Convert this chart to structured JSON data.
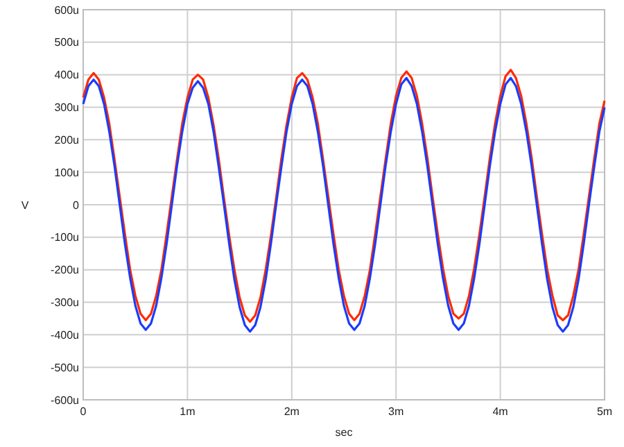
{
  "chart_data": {
    "type": "line",
    "xlabel": "sec",
    "ylabel": "V",
    "grid": true,
    "line_style": "solid",
    "marker": "none",
    "xlim": [
      0,
      5
    ],
    "ylim": [
      -600,
      600
    ],
    "xticks": [
      0,
      {
        "value": 1,
        "label": "1m"
      },
      {
        "value": 2,
        "label": "2m"
      },
      {
        "value": 3,
        "label": "3m"
      },
      {
        "value": 4,
        "label": "4m"
      },
      {
        "value": 5,
        "label": "5m"
      }
    ],
    "yticks": [
      {
        "value": -600,
        "label": "-600u"
      },
      {
        "value": -500,
        "label": "-500u"
      },
      {
        "value": -400,
        "label": "-400u"
      },
      {
        "value": -300,
        "label": "-300u"
      },
      {
        "value": -200,
        "label": "-200u"
      },
      {
        "value": -100,
        "label": "-100u"
      },
      0,
      {
        "value": 100,
        "label": "100u"
      },
      {
        "value": 200,
        "label": "200u"
      },
      {
        "value": 300,
        "label": "300u"
      },
      {
        "value": 400,
        "label": "400u"
      },
      {
        "value": 500,
        "label": "500u"
      },
      {
        "value": 600,
        "label": "600u"
      }
    ],
    "x": [
      0,
      0.05,
      0.1,
      0.15,
      0.2,
      0.25,
      0.3,
      0.35,
      0.4,
      0.45,
      0.5,
      0.55,
      0.6,
      0.65,
      0.7,
      0.75,
      0.8,
      0.85,
      0.9,
      0.95,
      1,
      1.05,
      1.1,
      1.15,
      1.2,
      1.25,
      1.3,
      1.35,
      1.4,
      1.45,
      1.5,
      1.55,
      1.6,
      1.65,
      1.7,
      1.75,
      1.8,
      1.85,
      1.9,
      1.95,
      2,
      2.05,
      2.1,
      2.15,
      2.2,
      2.25,
      2.3,
      2.35,
      2.4,
      2.45,
      2.5,
      2.55,
      2.6,
      2.65,
      2.7,
      2.75,
      2.8,
      2.85,
      2.9,
      2.95,
      3,
      3.05,
      3.1,
      3.15,
      3.2,
      3.25,
      3.3,
      3.35,
      3.4,
      3.45,
      3.5,
      3.55,
      3.6,
      3.65,
      3.7,
      3.75,
      3.8,
      3.85,
      3.9,
      3.95,
      4,
      4.05,
      4.1,
      4.15,
      4.2,
      4.25,
      4.3,
      4.35,
      4.4,
      4.45,
      4.5,
      4.55,
      4.6,
      4.65,
      4.7,
      4.75,
      4.8,
      4.85,
      4.9,
      4.95,
      5
    ],
    "series": [
      {
        "color": "#ff2a00",
        "values": [
          330,
          385,
          405,
          385,
          330,
          250,
          140,
          25,
          -90,
          -200,
          -280,
          -335,
          -355,
          -335,
          -280,
          -200,
          -90,
          25,
          140,
          250,
          330,
          385,
          400,
          385,
          330,
          245,
          140,
          20,
          -95,
          -200,
          -285,
          -340,
          -360,
          -340,
          -285,
          -200,
          -95,
          20,
          140,
          245,
          330,
          390,
          405,
          385,
          330,
          250,
          140,
          25,
          -90,
          -200,
          -280,
          -335,
          -355,
          -335,
          -280,
          -200,
          -90,
          25,
          140,
          250,
          335,
          390,
          410,
          390,
          335,
          250,
          145,
          25,
          -90,
          -195,
          -280,
          -335,
          -350,
          -335,
          -280,
          -195,
          -90,
          25,
          145,
          250,
          335,
          395,
          415,
          390,
          335,
          250,
          145,
          25,
          -90,
          -200,
          -280,
          -340,
          -355,
          -340,
          -280,
          -200,
          -90,
          25,
          140,
          250,
          320
        ]
      },
      {
        "color": "#1a3cff",
        "values": [
          310,
          365,
          385,
          365,
          310,
          225,
          120,
          0,
          -120,
          -225,
          -310,
          -365,
          -385,
          -365,
          -310,
          -225,
          -120,
          0,
          120,
          225,
          310,
          360,
          380,
          360,
          310,
          225,
          115,
          0,
          -120,
          -230,
          -315,
          -370,
          -390,
          -370,
          -315,
          -230,
          -120,
          0,
          115,
          225,
          310,
          365,
          385,
          365,
          310,
          225,
          120,
          0,
          -120,
          -225,
          -310,
          -365,
          -385,
          -365,
          -310,
          -225,
          -120,
          0,
          120,
          225,
          310,
          370,
          390,
          365,
          310,
          225,
          120,
          0,
          -120,
          -225,
          -310,
          -365,
          -385,
          -365,
          -310,
          -225,
          -120,
          0,
          120,
          225,
          310,
          370,
          390,
          365,
          310,
          225,
          120,
          0,
          -120,
          -230,
          -315,
          -370,
          -390,
          -370,
          -315,
          -230,
          -120,
          0,
          115,
          225,
          300
        ]
      }
    ]
  }
}
